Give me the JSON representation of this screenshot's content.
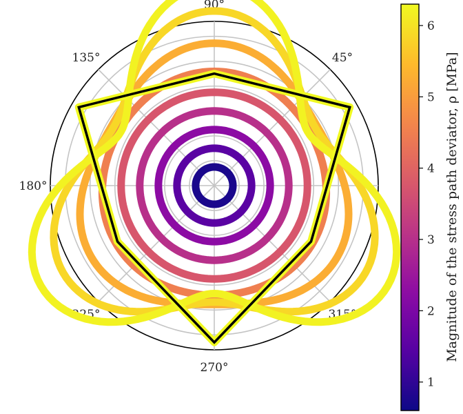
{
  "chart_data": {
    "type": "polar",
    "angular_ticks": [
      {
        "angle": 0,
        "label": ""
      },
      {
        "angle": 45,
        "label": "45°"
      },
      {
        "angle": 90,
        "label": "90°"
      },
      {
        "angle": 135,
        "label": "135°"
      },
      {
        "angle": 180,
        "label": "180°"
      },
      {
        "angle": 225,
        "label": "225°"
      },
      {
        "angle": 270,
        "label": "270°"
      },
      {
        "angle": 315,
        "label": "315°"
      }
    ],
    "radial_grid": [
      1,
      2,
      3,
      4,
      5,
      6
    ],
    "rmax": 6.6,
    "grid": true,
    "series": [
      {
        "rho": 0.75,
        "triangularity": 0.0
      },
      {
        "rho": 1.5,
        "triangularity": 0.0
      },
      {
        "rho": 2.25,
        "triangularity": 0.0
      },
      {
        "rho": 3.0,
        "triangularity": 0.0
      },
      {
        "rho": 3.75,
        "triangularity": 0.0
      },
      {
        "rho": 4.5,
        "triangularity": 0.02
      },
      {
        "rho": 5.25,
        "triangularity": 0.09
      },
      {
        "rho": 5.85,
        "triangularity": 0.2
      },
      {
        "rho": 6.2,
        "triangularity": 0.3
      }
    ],
    "boundary": {
      "vertices": [
        {
          "theta": 90,
          "r": 4.5
        },
        {
          "theta": 30,
          "r": 6.3
        },
        {
          "theta": 330,
          "r": 4.5
        },
        {
          "theta": 270,
          "r": 6.3
        },
        {
          "theta": 210,
          "r": 4.5
        },
        {
          "theta": 150,
          "r": 6.3
        }
      ],
      "color": "#000000"
    },
    "colorbar": {
      "label": "Magnitude of the stress path deviator, ρ [MPa]",
      "min": 0.6,
      "max": 6.3,
      "ticks": [
        "1",
        "2",
        "3",
        "4",
        "5",
        "6"
      ],
      "colormap": "plasma"
    }
  }
}
